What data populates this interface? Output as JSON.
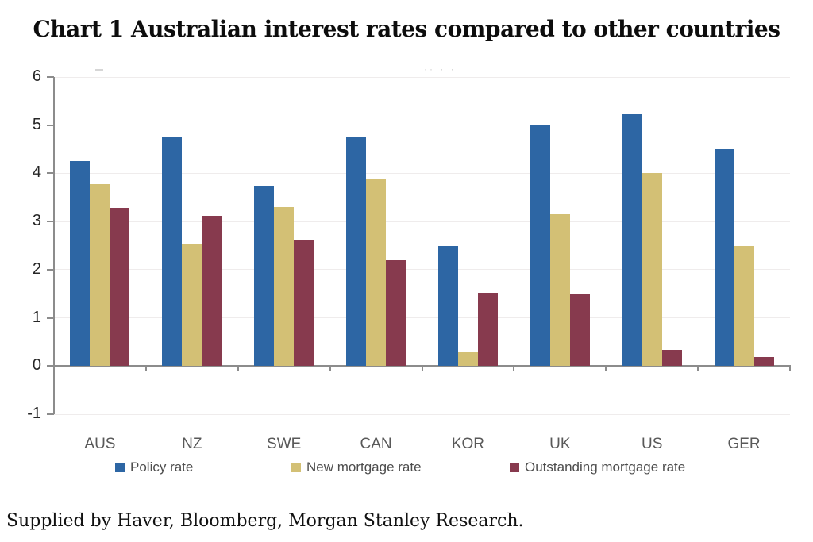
{
  "title": "Chart 1 Australian interest rates compared to other countries",
  "footer": "Supplied by Haver, Bloomberg, Morgan Stanley Research.",
  "artifacts": {
    "center_dots": "·· ·    ·"
  },
  "colors": {
    "policy_rate": "#2d66a4",
    "new_mortgage_rate": "#d3c075",
    "outstanding_mortgage_rate": "#873a4e",
    "axis": "#8c8c8c",
    "gridline": "#efecec",
    "y_tick_label": "#262626",
    "x_tick_label": "#595959",
    "legend_text": "#4d4d4d"
  },
  "chart_data": {
    "type": "bar",
    "title": "Chart 1 Australian interest rates compared to other countries",
    "categories": [
      "AUS",
      "NZ",
      "SWE",
      "CAN",
      "KOR",
      "UK",
      "US",
      "GER"
    ],
    "series": [
      {
        "name": "Policy rate",
        "color": "#2d66a4",
        "values": [
          4.25,
          4.75,
          3.75,
          4.75,
          2.5,
          5.0,
          5.23,
          4.5
        ]
      },
      {
        "name": "New mortgage rate",
        "color": "#d3c075",
        "values": [
          3.78,
          2.52,
          3.3,
          3.88,
          0.3,
          3.15,
          4.0,
          2.5
        ]
      },
      {
        "name": "Outstanding mortgage rate",
        "color": "#873a4e",
        "values": [
          3.28,
          3.12,
          2.63,
          2.2,
          1.52,
          1.48,
          0.33,
          0.18
        ]
      }
    ],
    "xlabel": "",
    "ylabel": "",
    "ylim": [
      -1,
      6
    ],
    "yticks": [
      6,
      5,
      4,
      3,
      2,
      1,
      0,
      -1
    ],
    "grid": true,
    "legend_position": "bottom"
  }
}
